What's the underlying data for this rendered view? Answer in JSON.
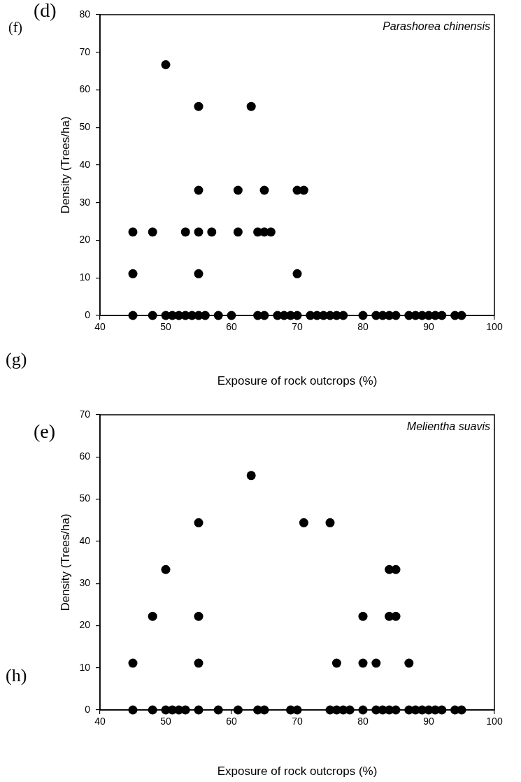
{
  "chart_data": [
    {
      "type": "scatter",
      "title": "Parashorea chinensis",
      "xlabel": "Exposure of rock outcrops (%)",
      "ylabel": "Density (Trees/ha)",
      "annotations": [
        "(d)",
        "(f)",
        "(g)"
      ],
      "xlim": [
        40,
        100
      ],
      "xticks": [
        40,
        50,
        60,
        70,
        80,
        90,
        100
      ],
      "ylim": [
        0,
        80
      ],
      "yticks": [
        0,
        10,
        20,
        30,
        40,
        50,
        60,
        70,
        80
      ],
      "grid": false,
      "legend": false,
      "marker": "circle",
      "series": [
        {
          "color": "#000000",
          "x": [
            45,
            48,
            50,
            51,
            52,
            53,
            54,
            55,
            56,
            58,
            60,
            64,
            65,
            67,
            68,
            69,
            70,
            72,
            73,
            74,
            75,
            76,
            77,
            80,
            82,
            83,
            84,
            85,
            87,
            88,
            89,
            90,
            91,
            92,
            94,
            95,
            45,
            45,
            48,
            50,
            53,
            55,
            55,
            55,
            55,
            57,
            61,
            61,
            63,
            64,
            65,
            65,
            66,
            70,
            70,
            71
          ],
          "values": [
            0,
            0,
            0,
            0,
            0,
            0,
            0,
            0,
            0,
            0,
            0,
            0,
            0,
            0,
            0,
            0,
            0,
            0,
            0,
            0,
            0,
            0,
            0,
            0,
            0,
            0,
            0,
            0,
            0,
            0,
            0,
            0,
            0,
            0,
            0,
            0,
            11.1,
            22.2,
            22.2,
            66.7,
            22.2,
            55.6,
            33.3,
            22.2,
            11.1,
            22.2,
            33.3,
            22.2,
            55.6,
            22.2,
            22.2,
            33.3,
            22.2,
            33.3,
            11.1,
            33.3
          ]
        }
      ]
    },
    {
      "type": "scatter",
      "title": "Melientha suavis",
      "xlabel": "Exposure of rock outcrops (%)",
      "ylabel": "Density (Trees/ha)",
      "annotations": [
        "(e)",
        "(h)"
      ],
      "xlim": [
        40,
        100
      ],
      "xticks": [
        40,
        50,
        60,
        70,
        80,
        90,
        100
      ],
      "ylim": [
        0,
        70
      ],
      "yticks": [
        0,
        10,
        20,
        30,
        40,
        50,
        60,
        70
      ],
      "grid": false,
      "legend": false,
      "marker": "circle",
      "series": [
        {
          "color": "#000000",
          "x": [
            45,
            48,
            50,
            51,
            52,
            53,
            55,
            58,
            61,
            64,
            65,
            69,
            70,
            75,
            76,
            77,
            78,
            80,
            82,
            83,
            84,
            85,
            87,
            88,
            89,
            90,
            91,
            92,
            94,
            95,
            45,
            48,
            50,
            55,
            55,
            55,
            63,
            71,
            75,
            76,
            80,
            80,
            82,
            84,
            84,
            85,
            85,
            87
          ],
          "values": [
            0,
            0,
            0,
            0,
            0,
            0,
            0,
            0,
            0,
            0,
            0,
            0,
            0,
            0,
            0,
            0,
            0,
            0,
            0,
            0,
            0,
            0,
            0,
            0,
            0,
            0,
            0,
            0,
            0,
            0,
            11.1,
            22.2,
            33.3,
            44.4,
            22.2,
            11.1,
            55.6,
            44.4,
            44.4,
            11.1,
            22.2,
            11.1,
            11.1,
            33.3,
            22.2,
            33.3,
            22.2,
            11.1
          ]
        }
      ]
    }
  ]
}
